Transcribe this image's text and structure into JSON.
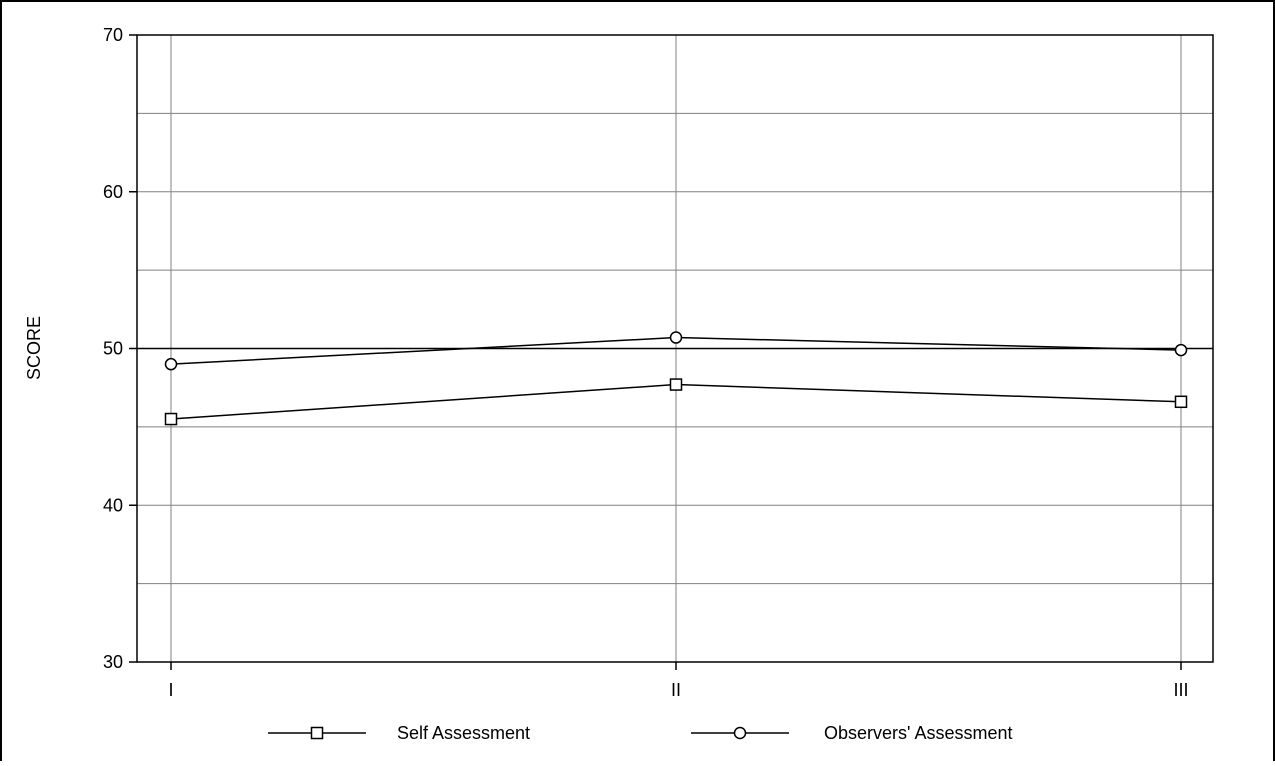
{
  "chart_data": {
    "type": "line",
    "title": "",
    "xlabel": "",
    "ylabel": "SCORE",
    "categories": [
      "I",
      "II",
      "III"
    ],
    "ylim": [
      30,
      70
    ],
    "yticks": [
      30,
      40,
      50,
      60,
      70
    ],
    "grid": true,
    "reference_line": 50,
    "legend_position": "bottom",
    "series": [
      {
        "name": "Self Assessment",
        "marker": "square",
        "values": [
          45.5,
          47.7,
          46.6
        ]
      },
      {
        "name": "Observers' Assessment",
        "marker": "circle",
        "values": [
          49.0,
          50.7,
          49.9
        ]
      }
    ]
  }
}
